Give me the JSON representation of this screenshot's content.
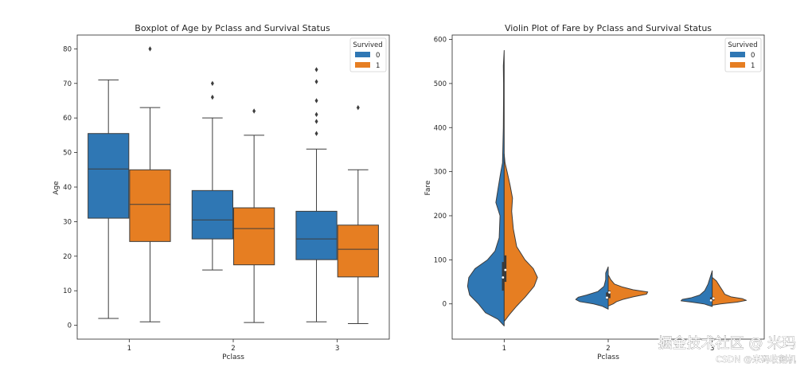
{
  "chart_data": [
    {
      "type": "box",
      "title": "Boxplot of Age by Pclass and Survival Status",
      "xlabel": "Pclass",
      "ylabel": "Age",
      "categories": [
        "1",
        "2",
        "3"
      ],
      "ylim": [
        -4,
        84
      ],
      "yticks": [
        "0",
        "10",
        "20",
        "30",
        "40",
        "50",
        "60",
        "70",
        "80"
      ],
      "legend": {
        "title": "Survived",
        "entries": [
          "0",
          "1"
        ],
        "position": "top-right"
      },
      "series": [
        {
          "name": "0",
          "color": "#2f77b4",
          "boxes": [
            {
              "min": 2,
              "q1": 31,
              "median": 45.25,
              "q3": 55.5,
              "max": 71,
              "outliers": []
            },
            {
              "min": 16,
              "q1": 25,
              "median": 30.5,
              "q3": 39,
              "max": 60,
              "outliers": [
                66,
                70
              ]
            },
            {
              "min": 1,
              "q1": 19,
              "median": 25,
              "q3": 33,
              "max": 51,
              "outliers": [
                55.5,
                59,
                61,
                65,
                70.5,
                74
              ]
            }
          ]
        },
        {
          "name": "1",
          "color": "#e67e22",
          "boxes": [
            {
              "min": 1,
              "q1": 24.25,
              "median": 35,
              "q3": 45,
              "max": 63,
              "outliers": [
                80
              ]
            },
            {
              "min": 0.8,
              "q1": 17.5,
              "median": 28,
              "q3": 34,
              "max": 55,
              "outliers": [
                62
              ]
            },
            {
              "min": 0.5,
              "q1": 14,
              "median": 22,
              "q3": 29,
              "max": 45,
              "outliers": [
                63
              ]
            }
          ]
        }
      ]
    },
    {
      "type": "violin",
      "title": "Violin Plot of Fare by Pclass and Survival Status",
      "xlabel": "Pclass",
      "ylabel": "Fare",
      "categories": [
        "1",
        "2",
        "3"
      ],
      "ylim": [
        -80,
        610
      ],
      "yticks": [
        "0",
        "100",
        "200",
        "300",
        "400",
        "500",
        "600"
      ],
      "split": true,
      "legend": {
        "title": "Survived",
        "entries": [
          "0",
          "1"
        ],
        "position": "top-right"
      },
      "series": [
        {
          "name": "0",
          "color": "#2f77b4",
          "violins": [
            {
              "profile": [
                [
                  -50,
                  0
                ],
                [
                  -35,
                  0.15
                ],
                [
                  -20,
                  0.45
                ],
                [
                  0,
                  0.62
                ],
                [
                  20,
                  0.83
                ],
                [
                  40,
                  0.88
                ],
                [
                  60,
                  0.85
                ],
                [
                  80,
                  0.7
                ],
                [
                  100,
                  0.4
                ],
                [
                  120,
                  0.22
                ],
                [
                  150,
                  0.12
                ],
                [
                  200,
                  0.1
                ],
                [
                  230,
                  0.2
                ],
                [
                  260,
                  0.15
                ],
                [
                  300,
                  0.08
                ],
                [
                  320,
                  0.04
                ],
                [
                  400,
                  0.02
                ],
                [
                  470,
                  0.015
                ],
                [
                  500,
                  0.015
                ],
                [
                  540,
                  0.02
                ],
                [
                  575,
                  0
                ]
              ],
              "q1": 30,
              "median": 60,
              "q3": 95
            },
            {
              "profile": [
                [
                  -12,
                  0
                ],
                [
                  -5,
                  0.15
                ],
                [
                  0,
                  0.35
                ],
                [
                  5,
                  0.68
                ],
                [
                  10,
                  0.78
                ],
                [
                  15,
                  0.72
                ],
                [
                  20,
                  0.52
                ],
                [
                  28,
                  0.25
                ],
                [
                  40,
                  0.1
                ],
                [
                  55,
                  0.06
                ],
                [
                  70,
                  0.06
                ],
                [
                  84,
                  0
                ]
              ],
              "q1": 10,
              "median": 14,
              "q3": 26
            },
            {
              "profile": [
                [
                  -6,
                  0
                ],
                [
                  0,
                  0.2
                ],
                [
                  4,
                  0.5
                ],
                [
                  7,
                  0.75
                ],
                [
                  10,
                  0.72
                ],
                [
                  14,
                  0.5
                ],
                [
                  20,
                  0.3
                ],
                [
                  30,
                  0.18
                ],
                [
                  45,
                  0.1
                ],
                [
                  60,
                  0.05
                ],
                [
                  75,
                  0
                ]
              ],
              "q1": 7.5,
              "median": 8,
              "q3": 15
            }
          ]
        },
        {
          "name": "1",
          "color": "#e67e22",
          "violins": [
            {
              "profile": [
                [
                  -40,
                  0
                ],
                [
                  -25,
                  0.12
                ],
                [
                  -5,
                  0.3
                ],
                [
                  15,
                  0.5
                ],
                [
                  40,
                  0.72
                ],
                [
                  60,
                  0.8
                ],
                [
                  80,
                  0.7
                ],
                [
                  100,
                  0.5
                ],
                [
                  130,
                  0.3
                ],
                [
                  170,
                  0.22
                ],
                [
                  210,
                  0.18
                ],
                [
                  240,
                  0.2
                ],
                [
                  270,
                  0.14
                ],
                [
                  300,
                  0.07
                ],
                [
                  320,
                  0.02
                ],
                [
                  340,
                  0
                ]
              ],
              "q1": 50,
              "median": 77,
              "q3": 110
            },
            {
              "profile": [
                [
                  -5,
                  0
                ],
                [
                  0,
                  0.12
                ],
                [
                  5,
                  0.2
                ],
                [
                  10,
                  0.35
                ],
                [
                  16,
                  0.6
                ],
                [
                  22,
                  0.92
                ],
                [
                  27,
                  0.95
                ],
                [
                  32,
                  0.6
                ],
                [
                  38,
                  0.35
                ],
                [
                  45,
                  0.15
                ],
                [
                  55,
                  0.06
                ],
                [
                  66,
                  0
                ]
              ],
              "q1": 13,
              "median": 26,
              "q3": 30
            },
            {
              "profile": [
                [
                  -3,
                  0
                ],
                [
                  0,
                  0.2
                ],
                [
                  4,
                  0.6
                ],
                [
                  8,
                  0.82
                ],
                [
                  12,
                  0.72
                ],
                [
                  16,
                  0.45
                ],
                [
                  22,
                  0.3
                ],
                [
                  30,
                  0.25
                ],
                [
                  40,
                  0.18
                ],
                [
                  52,
                  0.1
                ],
                [
                  60,
                  0
                ]
              ],
              "q1": 7.8,
              "median": 12.5,
              "q3": 16
            }
          ]
        }
      ]
    }
  ],
  "watermark": {
    "main": "掘金技术社区 @ 米玛",
    "sub": "CSDN @米码收割机"
  }
}
